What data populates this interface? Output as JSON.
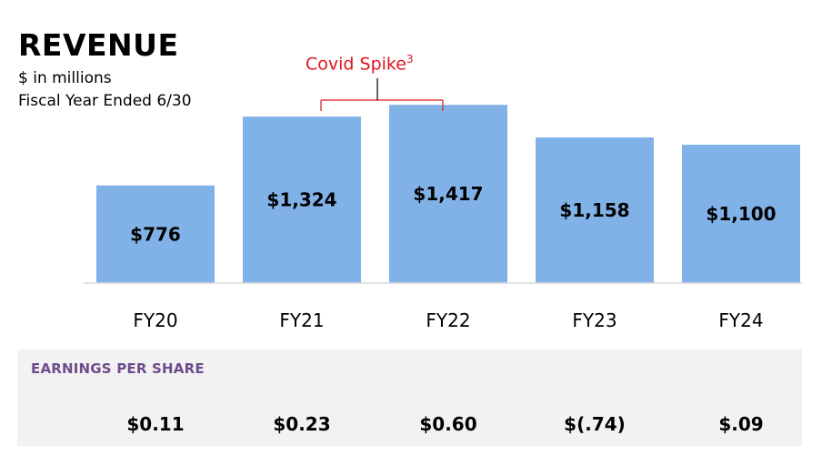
{
  "header": {
    "title": "REVENUE",
    "subtitle_line1": "$ in millions",
    "subtitle_line2": "Fiscal Year Ended 6/30"
  },
  "annotation": {
    "text": "Covid Spike",
    "superscript": "3",
    "color": "#e0141e"
  },
  "chart_data": {
    "type": "bar",
    "categories": [
      "FY20",
      "FY21",
      "FY22",
      "FY23",
      "FY24"
    ],
    "values": [
      776,
      1324,
      1417,
      1158,
      1100
    ],
    "data_labels": [
      "$776",
      "$1,324",
      "$1,417",
      "$1,158",
      "$1,100"
    ],
    "ylim": [
      0,
      1520
    ],
    "bar_color": "#80b2e8",
    "grid": false,
    "title": "REVENUE"
  },
  "eps": {
    "title": "EARNINGS PER SHARE",
    "title_color": "#6e4c8c",
    "values": [
      "$0.11",
      "$0.23",
      "$0.60",
      "$(.74)",
      "$.09"
    ]
  }
}
